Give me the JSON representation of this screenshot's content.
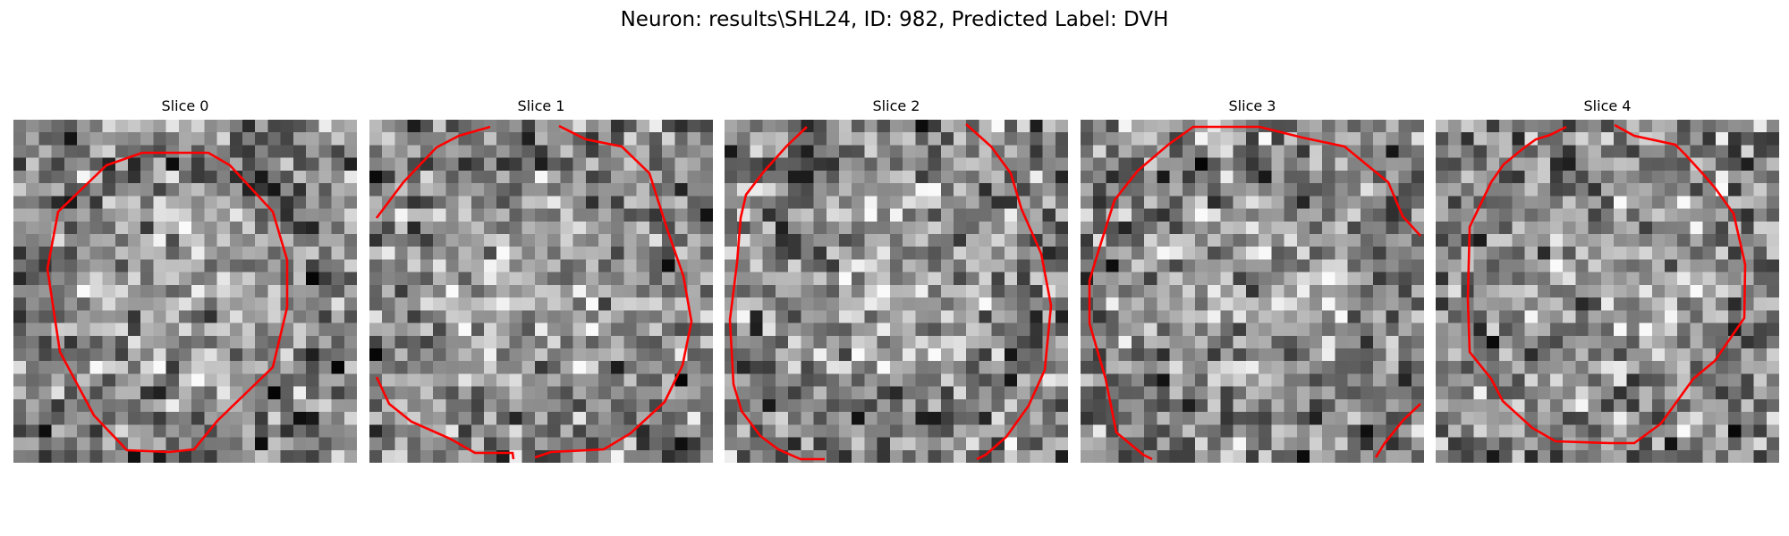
{
  "figure": {
    "title": "Neuron: results\\SHL24, ID: 982, Predicted Label: DVH"
  },
  "slices": [
    {
      "title": "Slice 0",
      "seed": 11,
      "contour_shape": "closed-polygon"
    },
    {
      "title": "Slice 1",
      "seed": 23,
      "contour_shape": "open-arcs"
    },
    {
      "title": "Slice 2",
      "seed": 37,
      "contour_shape": "open-arcs"
    },
    {
      "title": "Slice 3",
      "seed": 41,
      "contour_shape": "open-arcs"
    },
    {
      "title": "Slice 4",
      "seed": 59,
      "contour_shape": "closed-polygon"
    }
  ],
  "style": {
    "contour_color": "#ff0000",
    "colormap": "gray"
  }
}
